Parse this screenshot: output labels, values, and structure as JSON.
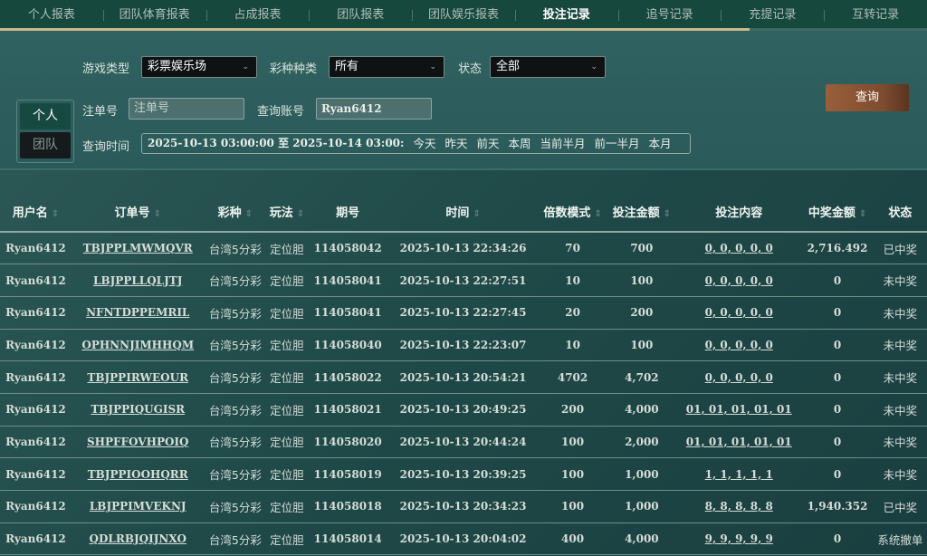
{
  "tabs": [
    {
      "label": "个人报表"
    },
    {
      "label": "团队体育报表"
    },
    {
      "label": "占成报表"
    },
    {
      "label": "团队报表"
    },
    {
      "label": "团队娱乐报表"
    },
    {
      "label": "投注记录"
    },
    {
      "label": "追号记录"
    },
    {
      "label": "充提记录"
    },
    {
      "label": "互转记录"
    }
  ],
  "active_tab": "投注记录",
  "filters": {
    "toggle_personal": "个人",
    "toggle_team": "团队",
    "game_type_label": "游戏类型",
    "game_type_value": "彩票娱乐场",
    "lottery_label": "彩种种类",
    "lottery_value": "所有",
    "status_label": "状态",
    "status_value": "全部",
    "order_label": "注单号",
    "order_placeholder": "注单号",
    "account_label": "查询账号",
    "account_value": "Ryan6412",
    "time_label": "查询时间",
    "time_value": "2025-10-13 03:00:00 至 2025-10-14 03:00:",
    "quick": [
      "今天",
      "昨天",
      "前天",
      "本周",
      "当前半月",
      "前一半月",
      "本月"
    ],
    "query_button": "查询"
  },
  "table": {
    "headers": [
      {
        "label": "用户名",
        "sortable": true
      },
      {
        "label": "订单号",
        "sortable": true
      },
      {
        "label": "彩种",
        "sortable": true
      },
      {
        "label": "玩法",
        "sortable": true
      },
      {
        "label": "期号",
        "sortable": false
      },
      {
        "label": "时间",
        "sortable": true
      },
      {
        "label": "倍数模式",
        "sortable": true
      },
      {
        "label": "投注金额",
        "sortable": true
      },
      {
        "label": "投注内容",
        "sortable": false
      },
      {
        "label": "中奖金额",
        "sortable": true
      },
      {
        "label": "状态",
        "sortable": false
      }
    ],
    "rows": [
      [
        "Ryan6412",
        "TBJPPLMWMQVR",
        "台湾5分彩",
        "定位胆",
        "114058042",
        "2025-10-13 22:34:26",
        "70",
        "700",
        "0, 0, 0, 0, 0",
        "2,716.492",
        "已中奖"
      ],
      [
        "Ryan6412",
        "LBJPPLLQLJTJ",
        "台湾5分彩",
        "定位胆",
        "114058041",
        "2025-10-13 22:27:51",
        "10",
        "100",
        "0, 0, 0, 0, 0",
        "0",
        "未中奖"
      ],
      [
        "Ryan6412",
        "NFNTDPPEMRIL",
        "台湾5分彩",
        "定位胆",
        "114058041",
        "2025-10-13 22:27:45",
        "20",
        "200",
        "0, 0, 0, 0, 0",
        "0",
        "未中奖"
      ],
      [
        "Ryan6412",
        "OPHNNJIMHHQM",
        "台湾5分彩",
        "定位胆",
        "114058040",
        "2025-10-13 22:23:07",
        "10",
        "100",
        "0, 0, 0, 0, 0",
        "0",
        "未中奖"
      ],
      [
        "Ryan6412",
        "TBJPPIRWEOUR",
        "台湾5分彩",
        "定位胆",
        "114058022",
        "2025-10-13 20:54:21",
        "4702",
        "4,702",
        "0, 0, 0, 0, 0",
        "0",
        "未中奖"
      ],
      [
        "Ryan6412",
        "TBJPPIQUGISR",
        "台湾5分彩",
        "定位胆",
        "114058021",
        "2025-10-13 20:49:25",
        "200",
        "4,000",
        "01, 01, 01, 01, 01",
        "0",
        "未中奖"
      ],
      [
        "Ryan6412",
        "SHPFFOVHPOIQ",
        "台湾5分彩",
        "定位胆",
        "114058020",
        "2025-10-13 20:44:24",
        "100",
        "2,000",
        "01, 01, 01, 01, 01",
        "0",
        "未中奖"
      ],
      [
        "Ryan6412",
        "TBJPPIOOHQRR",
        "台湾5分彩",
        "定位胆",
        "114058019",
        "2025-10-13 20:39:25",
        "100",
        "1,000",
        "1, 1, 1, 1, 1",
        "0",
        "未中奖"
      ],
      [
        "Ryan6412",
        "LBJPPIMVEKNJ",
        "台湾5分彩",
        "定位胆",
        "114058018",
        "2025-10-13 20:34:23",
        "100",
        "1,000",
        "8, 8, 8, 8, 8",
        "1,940.352",
        "已中奖"
      ],
      [
        "Ryan6412",
        "QDLRBJQIJNXO",
        "台湾5分彩",
        "定位胆",
        "114058014",
        "2025-10-13 20:04:02",
        "400",
        "4,000",
        "9, 9, 9, 9, 9",
        "0",
        "系统撤单"
      ]
    ]
  }
}
